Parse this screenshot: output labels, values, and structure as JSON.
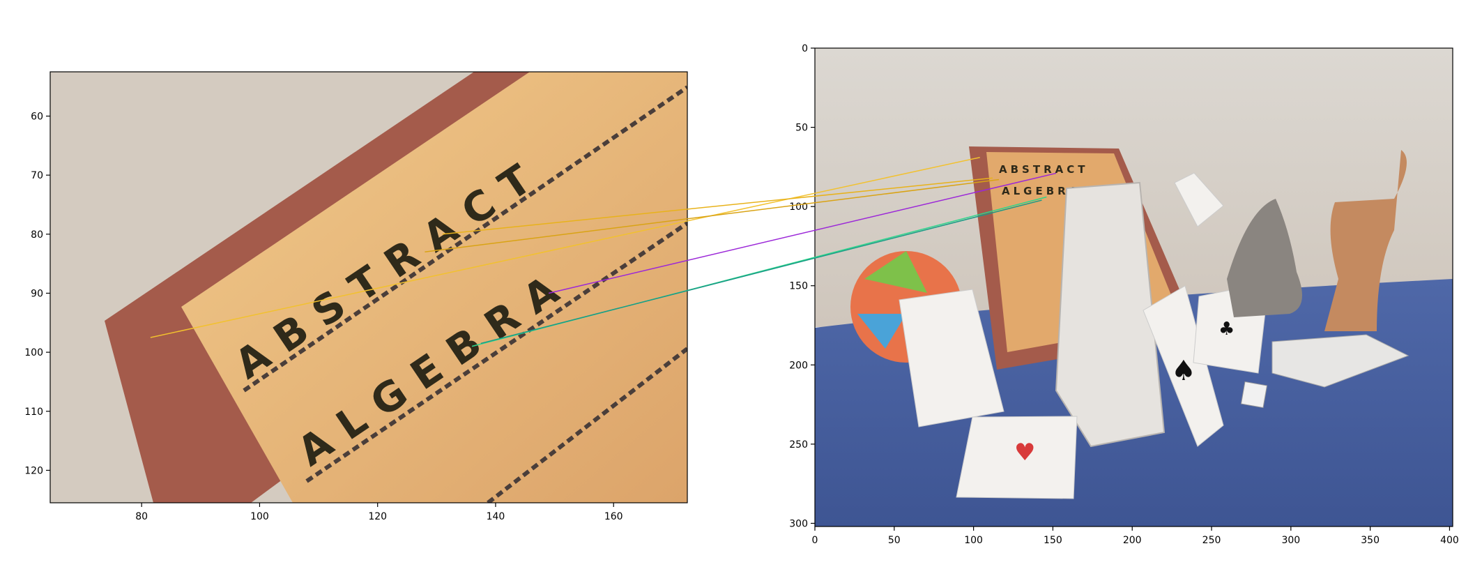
{
  "chart_data": [
    {
      "type": "image",
      "panel": "left",
      "description_visible_text": [
        "ABSTRACT",
        "ALGEBRA"
      ],
      "xlim": [
        64.5,
        172.5
      ],
      "ylim": [
        125.5,
        52.5
      ],
      "xticks": [
        80,
        100,
        120,
        140,
        160
      ],
      "yticks": [
        60,
        70,
        80,
        90,
        100,
        110,
        120
      ],
      "xtick_labels": [
        "80",
        "100",
        "120",
        "140",
        "160"
      ],
      "ytick_labels": [
        "60",
        "70",
        "80",
        "90",
        "100",
        "110",
        "120"
      ],
      "grid": false
    },
    {
      "type": "image",
      "panel": "right",
      "description_visible_text": [
        "ABSTRACT",
        "ALGEBRA"
      ],
      "xlim": [
        0,
        402
      ],
      "ylim": [
        302,
        0
      ],
      "xticks": [
        0,
        50,
        100,
        150,
        200,
        250,
        300,
        350,
        400
      ],
      "yticks": [
        0,
        50,
        100,
        150,
        200,
        250,
        300
      ],
      "xtick_labels": [
        "0",
        "50",
        "100",
        "150",
        "200",
        "250",
        "300",
        "350",
        "400"
      ],
      "ytick_labels": [
        "0",
        "50",
        "100",
        "150",
        "200",
        "250",
        "300"
      ],
      "grid": false
    }
  ],
  "matches": [
    {
      "left": [
        81.5,
        97.5
      ],
      "right": [
        104.0,
        69.0
      ],
      "color": "#f2c12e"
    },
    {
      "left": [
        131.0,
        80.0
      ],
      "right": [
        112.0,
        82.0
      ],
      "color": "#e8b21a"
    },
    {
      "left": [
        128.0,
        83.0
      ],
      "right": [
        116.0,
        83.0
      ],
      "color": "#d9a314"
    },
    {
      "left": [
        149.0,
        90.0
      ],
      "right": [
        152.0,
        79.0
      ],
      "color": "#9b27d8"
    },
    {
      "left": [
        136.0,
        99.0
      ],
      "right": [
        146.0,
        94.0
      ],
      "color": "#2dd68c"
    },
    {
      "left": [
        137.5,
        98.5
      ],
      "right": [
        143.0,
        96.0
      ],
      "color": "#1a9b86"
    }
  ],
  "scene_text": {
    "left_word_1": "ABSTRACT",
    "left_word_2": "ALGEBRA",
    "right_word_1": "ABSTRACT",
    "right_word_2": "ALGEBRA"
  },
  "colors": {
    "wall": "#d8d2cb",
    "book_cover": "#e0a86a",
    "book_border": "#a85a48",
    "cloth": "#4a64a4"
  }
}
